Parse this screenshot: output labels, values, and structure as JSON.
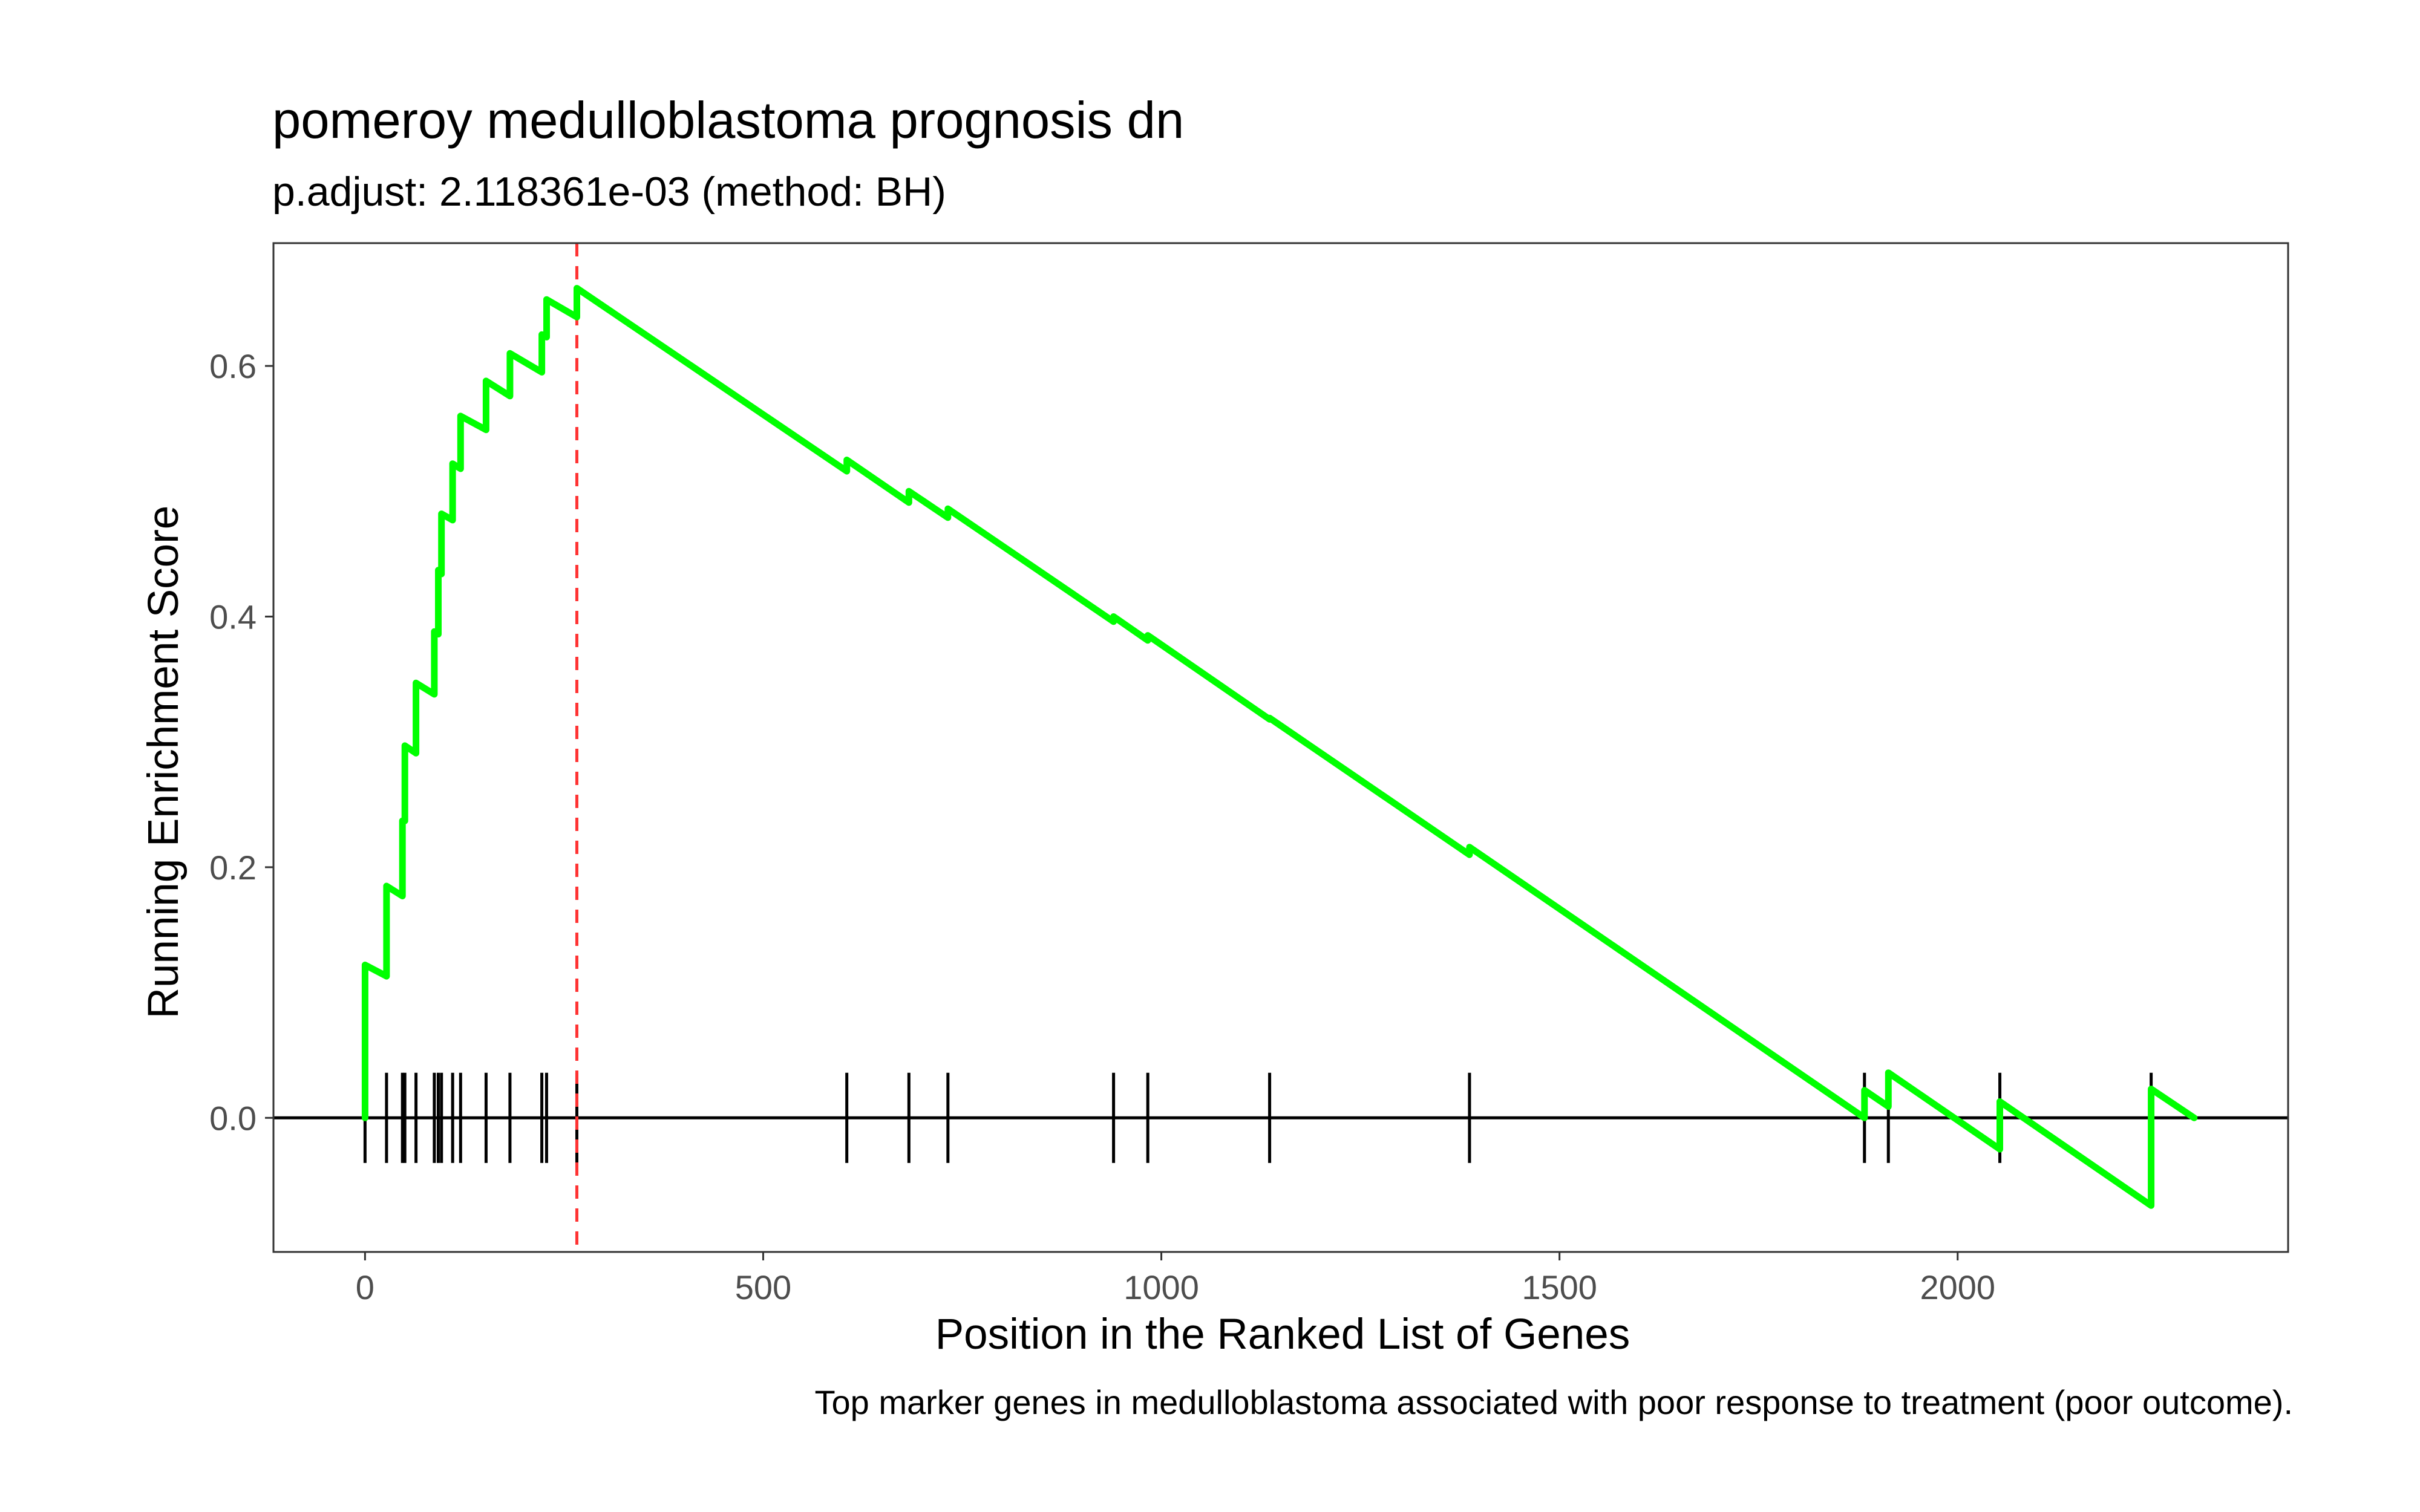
{
  "chart_data": {
    "type": "line",
    "title": "pomeroy medulloblastoma prognosis dn",
    "subtitle": "p.adjust: 2.118361e-03 (method: BH)",
    "xlabel": "Position in the Ranked List of Genes",
    "ylabel": "Running Enrichment Score",
    "caption": "Top marker genes in medulloblastoma associated with poor response to treatment (poor outcome).",
    "xlim": [
      -115,
      2415
    ],
    "ylim": [
      -0.107,
      0.698
    ],
    "x_ticks": [
      0,
      500,
      1000,
      1500,
      2000
    ],
    "x_tick_labels": [
      "0",
      "500",
      "1000",
      "1500",
      "2000"
    ],
    "y_ticks": [
      0.0,
      0.2,
      0.4,
      0.6
    ],
    "y_tick_labels": [
      "0.0",
      "0.2",
      "0.4",
      "0.6"
    ],
    "grid": false,
    "line_color": "#00ff00",
    "marker_line_color": "#ff3333",
    "max_position": 266,
    "series": [
      {
        "values": [
          [
            0,
            0.0
          ],
          [
            0,
            0.122
          ],
          [
            27,
            0.113
          ],
          [
            27,
            0.185
          ],
          [
            47,
            0.177
          ],
          [
            47,
            0.237
          ],
          [
            50,
            0.237
          ],
          [
            50,
            0.297
          ],
          [
            64,
            0.291
          ],
          [
            64,
            0.347
          ],
          [
            87,
            0.338
          ],
          [
            87,
            0.388
          ],
          [
            92,
            0.386
          ],
          [
            92,
            0.437
          ],
          [
            96,
            0.434
          ],
          [
            96,
            0.482
          ],
          [
            110,
            0.477
          ],
          [
            110,
            0.522
          ],
          [
            120,
            0.518
          ],
          [
            120,
            0.56
          ],
          [
            152,
            0.549
          ],
          [
            152,
            0.588
          ],
          [
            182,
            0.576
          ],
          [
            182,
            0.61
          ],
          [
            222,
            0.595
          ],
          [
            222,
            0.625
          ],
          [
            228,
            0.623
          ],
          [
            228,
            0.653
          ],
          [
            266,
            0.639
          ],
          [
            266,
            0.662
          ],
          [
            605,
            0.516
          ],
          [
            605,
            0.525
          ],
          [
            683,
            0.491
          ],
          [
            683,
            0.5
          ],
          [
            732,
            0.479
          ],
          [
            732,
            0.486
          ],
          [
            940,
            0.396
          ],
          [
            940,
            0.4
          ],
          [
            983,
            0.381
          ],
          [
            983,
            0.385
          ],
          [
            1136,
            0.318
          ],
          [
            1136,
            0.319
          ],
          [
            1387,
            0.21
          ],
          [
            1387,
            0.216
          ],
          [
            1883,
            0.0
          ],
          [
            1883,
            0.022
          ],
          [
            1913,
            0.009
          ],
          [
            1913,
            0.036
          ],
          [
            2053,
            -0.025
          ],
          [
            2053,
            0.013
          ],
          [
            2243,
            -0.07
          ],
          [
            2243,
            0.023
          ],
          [
            2297,
            0.0
          ]
        ]
      }
    ],
    "hit_positions": [
      0,
      27,
      47,
      50,
      64,
      87,
      92,
      96,
      110,
      120,
      152,
      182,
      222,
      228,
      266,
      605,
      683,
      732,
      940,
      983,
      1136,
      1387,
      1883,
      1913,
      2053,
      2243
    ]
  }
}
